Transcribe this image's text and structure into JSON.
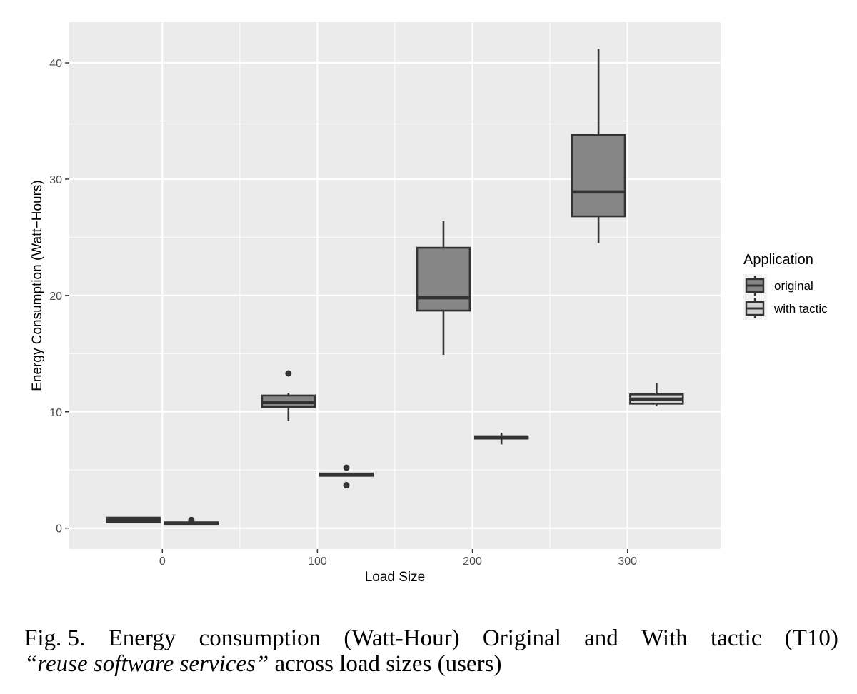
{
  "chart_data": {
    "type": "boxplot",
    "xlabel": "Load Size",
    "ylabel": "Energy Consumption (Watt−Hours)",
    "xlim": [
      -60,
      360
    ],
    "ylim": [
      -1.8,
      43.5
    ],
    "x_ticks": [
      0,
      100,
      200,
      300
    ],
    "x_tick_labels": [
      "0",
      "100",
      "200",
      "300"
    ],
    "y_ticks": [
      0,
      10,
      20,
      30,
      40
    ],
    "y_tick_labels": [
      "0",
      "10",
      "20",
      "30",
      "40"
    ],
    "grid": true,
    "legend": {
      "title": "Application",
      "position": "right",
      "entries": [
        "original",
        "with tactic"
      ]
    },
    "series": [
      {
        "name": "original",
        "fill": "#868686",
        "boxes": [
          {
            "load": 0,
            "whisker_low": 0.5,
            "q1": 0.5,
            "median": 0.7,
            "q3": 0.9,
            "whisker_high": 0.9,
            "outliers": []
          },
          {
            "load": 100,
            "whisker_low": 9.2,
            "q1": 10.4,
            "median": 10.8,
            "q3": 11.4,
            "whisker_high": 11.6,
            "outliers": [
              13.3
            ]
          },
          {
            "load": 200,
            "whisker_low": 14.9,
            "q1": 18.7,
            "median": 19.8,
            "q3": 24.1,
            "whisker_high": 26.4,
            "outliers": []
          },
          {
            "load": 300,
            "whisker_low": 24.5,
            "q1": 26.8,
            "median": 28.9,
            "q3": 33.8,
            "whisker_high": 41.2,
            "outliers": []
          }
        ]
      },
      {
        "name": "with tactic",
        "fill": "#d3d3d3",
        "boxes": [
          {
            "load": 0,
            "whisker_low": 0.3,
            "q1": 0.3,
            "median": 0.4,
            "q3": 0.5,
            "whisker_high": 0.5,
            "outliers": [
              0.7
            ]
          },
          {
            "load": 100,
            "whisker_low": 4.5,
            "q1": 4.5,
            "median": 4.6,
            "q3": 4.7,
            "whisker_high": 4.7,
            "outliers": [
              5.2,
              3.7
            ]
          },
          {
            "load": 200,
            "whisker_low": 7.2,
            "q1": 7.7,
            "median": 7.8,
            "q3": 7.9,
            "whisker_high": 8.2,
            "outliers": []
          },
          {
            "load": 300,
            "whisker_low": 10.5,
            "q1": 10.7,
            "median": 11.1,
            "q3": 11.5,
            "whisker_high": 12.5,
            "outliers": []
          }
        ]
      }
    ]
  },
  "caption": {
    "words_line1": [
      "Fig. 5.",
      "Energy",
      "consumption",
      "(Watt-Hour)",
      "Original",
      "and",
      "With",
      "tactic",
      "(T10)"
    ],
    "italic_part": "“reuse software services”",
    "rest": " across load sizes (users)"
  }
}
